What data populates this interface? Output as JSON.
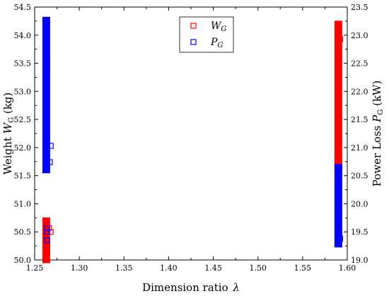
{
  "chart_data": {
    "type": "scatter",
    "xlabel": "Dimension ratio λ",
    "ylabel_left": "Weight W_G (kg)",
    "ylabel_right": "Power Loss P_G (kW)",
    "xlim": [
      1.25,
      1.6
    ],
    "ylim_left": [
      50.0,
      54.5
    ],
    "ylim_right": [
      19.0,
      23.5
    ],
    "x_ticks": [
      "1.25",
      "1.30",
      "1.35",
      "1.40",
      "1.45",
      "1.50",
      "1.55",
      "1.60"
    ],
    "y_left_ticks": [
      "50.0",
      "50.5",
      "51.0",
      "51.5",
      "52.0",
      "52.5",
      "53.0",
      "53.5",
      "54.0",
      "54.5"
    ],
    "y_right_ticks": [
      "19.0",
      "19.5",
      "20.0",
      "20.5",
      "21.0",
      "21.5",
      "22.0",
      "22.5",
      "23.0",
      "23.5"
    ],
    "grid": false,
    "legend": {
      "placement": "top-center"
    },
    "series": [
      {
        "name": "W_G",
        "axis": "left",
        "color": "#ff0000",
        "marker": "open-square",
        "clusters": [
          {
            "x": 1.263,
            "y_min": 50.0,
            "y_max": 50.7
          },
          {
            "x": 1.59,
            "y_min": 51.65,
            "y_max": 54.2
          }
        ],
        "outliers": [
          {
            "x": 1.266,
            "y": 50.57
          },
          {
            "x": 1.268,
            "y": 50.5
          },
          {
            "x": 1.264,
            "y": 53.48
          },
          {
            "x": 1.592,
            "y": 53.93
          }
        ]
      },
      {
        "name": "P_G",
        "axis": "right",
        "color": "#0000ff",
        "marker": "open-square",
        "clusters": [
          {
            "x": 1.263,
            "y_min": 20.6,
            "y_max": 23.27
          },
          {
            "x": 1.59,
            "y_min": 19.28,
            "y_max": 20.65
          }
        ],
        "outliers": [
          {
            "x": 1.268,
            "y": 21.03
          },
          {
            "x": 1.267,
            "y": 20.74
          },
          {
            "x": 1.264,
            "y": 19.56
          },
          {
            "x": 1.264,
            "y": 19.35
          },
          {
            "x": 1.264,
            "y": 19.5
          },
          {
            "x": 1.592,
            "y": 19.38
          }
        ]
      }
    ]
  },
  "legend_items": [
    {
      "symbol": "W",
      "subscript": "G",
      "color": "#ff0000"
    },
    {
      "symbol": "P",
      "subscript": "G",
      "color": "#0000ff"
    }
  ]
}
